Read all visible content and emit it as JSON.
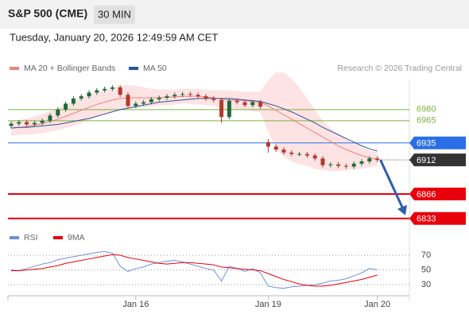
{
  "header": {
    "title": "S&P 500 (CME)",
    "interval": "30 MIN",
    "timestamp": "Tuesday, January 20, 2026 12:49:59 AM CET"
  },
  "chart_data": [
    {
      "type": "candlestick",
      "credit": "Research © 2026 Trading Central",
      "categories": [
        null,
        null,
        null,
        null,
        null,
        null,
        null,
        null,
        null,
        null,
        null,
        null,
        null,
        null,
        null,
        null,
        "Jan 16",
        null,
        null,
        null,
        null,
        null,
        null,
        null,
        null,
        null,
        null,
        null,
        null,
        null,
        null,
        null,
        null,
        "Jan 19",
        null,
        null,
        null,
        null,
        null,
        null,
        null,
        null,
        null,
        null,
        null,
        null,
        null,
        "Jan 20"
      ],
      "open": [
        6958,
        6961,
        6963,
        6960,
        6962,
        6965,
        6972,
        6980,
        6988,
        6995,
        6998,
        7003,
        7006,
        7008,
        7010,
        7000,
        6985,
        6988,
        6990,
        6994,
        6996,
        6998,
        7000,
        7001,
        7000,
        6998,
        6995,
        6993,
        6970,
        6992,
        6990,
        6986,
        6990,
        6936,
        6930,
        6926,
        6922,
        6920,
        6920,
        6918,
        6914,
        6905,
        6906,
        6904,
        6903,
        6907,
        6910,
        6914
      ],
      "high": [
        6964,
        6966,
        6966,
        6965,
        6968,
        6975,
        6983,
        6991,
        6998,
        7001,
        7006,
        7009,
        7011,
        7013,
        7013,
        7003,
        6991,
        6993,
        6997,
        6999,
        7001,
        7003,
        7004,
        7004,
        7003,
        7001,
        6998,
        6996,
        6995,
        6995,
        6993,
        6993,
        6993,
        6940,
        6933,
        6929,
        6925,
        6923,
        6923,
        6921,
        6917,
        6909,
        6909,
        6907,
        6910,
        6913,
        6917,
        6917
      ],
      "low": [
        6955,
        6958,
        6957,
        6957,
        6959,
        6962,
        6969,
        6977,
        6985,
        6992,
        6995,
        7000,
        7003,
        7005,
        6997,
        6982,
        6982,
        6985,
        6987,
        6991,
        6993,
        6995,
        6997,
        6997,
        6995,
        6992,
        6990,
        6962,
        6967,
        6987,
        6983,
        6983,
        6981,
        6922,
        6923,
        6919,
        6917,
        6917,
        6915,
        6911,
        6902,
        6902,
        6901,
        6900,
        6900,
        6904,
        6907,
        6909
      ],
      "close": [
        6961,
        6963,
        6960,
        6962,
        6965,
        6972,
        6980,
        6988,
        6995,
        6998,
        7003,
        7006,
        7008,
        7010,
        7000,
        6985,
        6988,
        6990,
        6994,
        6996,
        6998,
        7000,
        7001,
        7000,
        6998,
        6995,
        6993,
        6970,
        6992,
        6990,
        6986,
        6990,
        6984,
        6930,
        6926,
        6922,
        6920,
        6920,
        6918,
        6914,
        6905,
        6906,
        6904,
        6903,
        6907,
        6910,
        6914,
        6912
      ],
      "up_color": "#1e6b3a",
      "down_color": "#b03a2e",
      "overlays": [
        {
          "name": "MA 20 + Bollinger Bands",
          "color": "#f08080",
          "band_color": "#fde3e3",
          "values": [
            6955,
            6956,
            6957,
            6959,
            6961,
            6964,
            6967,
            6971,
            6975,
            6979,
            6983,
            6987,
            6990,
            6993,
            6995,
            6996,
            6996,
            6996,
            6996,
            6996,
            6997,
            6997,
            6998,
            6998,
            6998,
            6997,
            6996,
            6994,
            6993,
            6993,
            6992,
            6991,
            6990,
            6985,
            6979,
            6973,
            6967,
            6961,
            6955,
            6949,
            6943,
            6937,
            6931,
            6926,
            6922,
            6918,
            6915,
            6913
          ],
          "upper": [
            6965,
            6966,
            6968,
            6971,
            6974,
            6978,
            6982,
            6987,
            6992,
            6996,
            7000,
            7004,
            7007,
            7010,
            7012,
            7013,
            7012,
            7010,
            7008,
            7007,
            7007,
            7007,
            7008,
            7008,
            7008,
            7007,
            7006,
            7006,
            7006,
            7005,
            7004,
            7004,
            7004,
            7020,
            7030,
            7030,
            7022,
            7010,
            6995,
            6980,
            6965,
            6955,
            6947,
            6940,
            6934,
            6929,
            6925,
            6922
          ],
          "lower": [
            6945,
            6946,
            6946,
            6947,
            6948,
            6950,
            6952,
            6955,
            6958,
            6962,
            6966,
            6970,
            6974,
            6978,
            6980,
            6981,
            6982,
            6983,
            6984,
            6985,
            6986,
            6987,
            6988,
            6988,
            6987,
            6986,
            6985,
            6980,
            6978,
            6980,
            6980,
            6978,
            6976,
            6950,
            6928,
            6916,
            6910,
            6906,
            6904,
            6900,
            6898,
            6897,
            6897,
            6898,
            6899,
            6900,
            6902,
            6904
          ]
        },
        {
          "name": "MA 50",
          "color": "#2f5597",
          "values": [
            6955,
            6956,
            6956,
            6957,
            6958,
            6959,
            6960,
            6962,
            6964,
            6966,
            6968,
            6971,
            6974,
            6977,
            6980,
            6982,
            6984,
            6986,
            6988,
            6990,
            6991,
            6992,
            6993,
            6994,
            6995,
            6995,
            6995,
            6995,
            6995,
            6994,
            6993,
            6992,
            6991,
            6988,
            6985,
            6981,
            6977,
            6972,
            6967,
            6962,
            6956,
            6951,
            6946,
            6941,
            6936,
            6931,
            6927,
            6924
          ]
        }
      ],
      "levels": [
        {
          "value": 6980,
          "color": "#7cb342",
          "style": "text"
        },
        {
          "value": 6965,
          "color": "#7cb342",
          "style": "text"
        },
        {
          "value": 6935,
          "color": "#2a6fe8",
          "style": "box"
        },
        {
          "value": 6912,
          "color": "#333333",
          "style": "current"
        },
        {
          "value": 6866,
          "color": "#e8000b",
          "style": "box"
        },
        {
          "value": 6833,
          "color": "#e8000b",
          "style": "box"
        }
      ],
      "ylim": [
        6822,
        7026
      ]
    },
    {
      "type": "line",
      "series": [
        {
          "name": "RSI",
          "color": "#6f8fd8",
          "values": [
            50,
            49,
            52,
            55,
            58,
            60,
            64,
            66,
            68,
            70,
            72,
            74,
            75,
            73,
            55,
            48,
            52,
            54,
            58,
            60,
            62,
            63,
            61,
            58,
            55,
            52,
            50,
            35,
            55,
            52,
            48,
            52,
            46,
            28,
            26,
            25,
            27,
            28,
            29,
            30,
            32,
            35,
            36,
            38,
            42,
            46,
            52,
            50
          ]
        },
        {
          "name": "9MA",
          "color": "#e8000b",
          "values": [
            49,
            49,
            50,
            51,
            52,
            54,
            56,
            59,
            61,
            63,
            65,
            67,
            69,
            71,
            70,
            67,
            65,
            63,
            61,
            59,
            58,
            59,
            60,
            60,
            59,
            58,
            57,
            54,
            53,
            52,
            51,
            50,
            49,
            45,
            41,
            37,
            34,
            31,
            29,
            28,
            28,
            29,
            31,
            33,
            35,
            37,
            40,
            43
          ]
        }
      ],
      "ylim": [
        17,
        82
      ],
      "yticks": [
        30,
        50,
        70
      ]
    }
  ]
}
